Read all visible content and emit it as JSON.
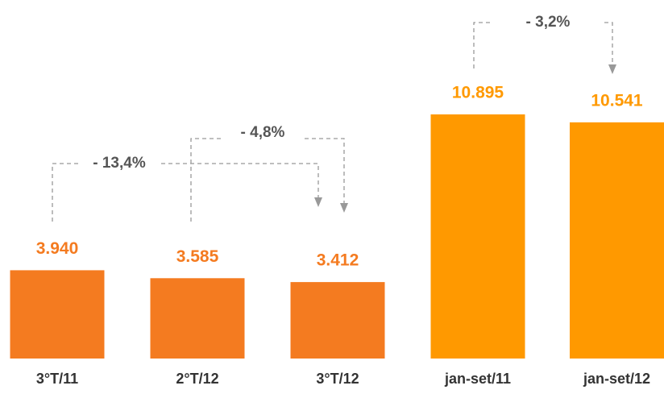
{
  "chart_data": {
    "type": "bar",
    "categories": [
      "3°T/11",
      "2°T/12",
      "3°T/12",
      "jan-set/11",
      "jan-set/12"
    ],
    "values": [
      3940,
      3585,
      3412,
      10895,
      10541
    ],
    "value_labels": [
      "3.940",
      "3.585",
      "3.412",
      "10.895",
      "10.541"
    ],
    "colors": [
      "#f47b20",
      "#f47b20",
      "#f47b20",
      "#ff9900",
      "#ff9900"
    ],
    "annotations": [
      "- 13,4%",
      "- 4,8%",
      "- 3,2%"
    ]
  }
}
